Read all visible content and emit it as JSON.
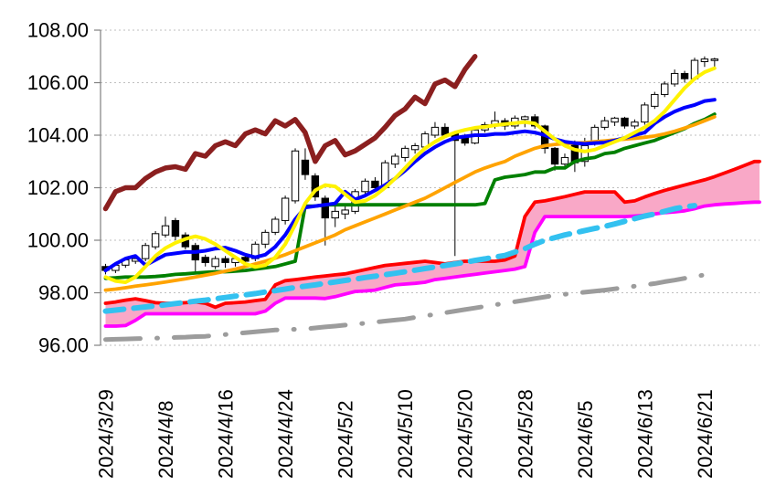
{
  "chart_data": {
    "type": "candlestick",
    "title": "",
    "background": "#FFFFFF",
    "grid": {
      "show": true,
      "color": "#BFBFBF",
      "axis_color": "#808080"
    },
    "y_axis": {
      "min": 96.0,
      "max": 108.0,
      "step": 2.0,
      "tick_labels": [
        "108.00",
        "106.00",
        "104.00",
        "102.00",
        "100.00",
        "98.00",
        "96.00"
      ]
    },
    "x_axis": {
      "total_slots": 66,
      "label_every_n_slots": 6,
      "tick_labels": [
        "2024/3/29",
        "2024/4/8",
        "2024/4/16",
        "2024/4/24",
        "2024/5/2",
        "2024/5/10",
        "2024/5/20",
        "2024/5/28",
        "2024/6/5",
        "2024/6/13",
        "2024/6/21"
      ]
    },
    "dates": [
      "2024/3/29",
      "2024/4/1",
      "2024/4/2",
      "2024/4/3",
      "2024/4/4",
      "2024/4/5",
      "2024/4/8",
      "2024/4/9",
      "2024/4/10",
      "2024/4/11",
      "2024/4/12",
      "2024/4/15",
      "2024/4/16",
      "2024/4/17",
      "2024/4/18",
      "2024/4/19",
      "2024/4/22",
      "2024/4/23",
      "2024/4/24",
      "2024/4/25",
      "2024/4/26",
      "2024/4/29",
      "2024/4/30",
      "2024/5/1",
      "2024/5/2",
      "2024/5/3",
      "2024/5/6",
      "2024/5/7",
      "2024/5/8",
      "2024/5/9",
      "2024/5/10",
      "2024/5/13",
      "2024/5/14",
      "2024/5/15",
      "2024/5/16",
      "2024/5/17",
      "2024/5/20",
      "2024/5/21",
      "2024/5/22",
      "2024/5/23",
      "2024/5/24",
      "2024/5/27",
      "2024/5/28",
      "2024/5/29",
      "2024/5/30",
      "2024/5/31",
      "2024/6/3",
      "2024/6/4",
      "2024/6/5",
      "2024/6/6",
      "2024/6/7",
      "2024/6/10",
      "2024/6/11",
      "2024/6/12",
      "2024/6/13",
      "2024/6/14",
      "2024/6/17",
      "2024/6/18",
      "2024/6/19",
      "2024/6/20",
      "2024/6/21",
      "2024/6/24",
      "2024/6/25",
      "2024/6/26",
      "2024/6/27",
      "2024/6/28"
    ],
    "candles": {
      "up_color": "#FFFFFF",
      "down_color": "#000000",
      "outline_color": "#000000",
      "ohlc": [
        [
          99.0,
          99.1,
          98.7,
          98.85
        ],
        [
          98.85,
          99.15,
          98.75,
          99.05
        ],
        [
          99.05,
          99.35,
          98.95,
          99.25
        ],
        [
          99.2,
          99.35,
          99.1,
          99.3
        ],
        [
          99.3,
          99.9,
          99.2,
          99.8
        ],
        [
          99.75,
          100.35,
          99.65,
          100.25
        ],
        [
          100.2,
          100.9,
          100.1,
          100.55
        ],
        [
          100.75,
          100.85,
          100.0,
          100.15
        ],
        [
          100.2,
          100.3,
          99.65,
          99.75
        ],
        [
          99.8,
          99.9,
          98.8,
          99.25
        ],
        [
          99.35,
          99.45,
          99.0,
          99.15
        ],
        [
          99.0,
          99.4,
          98.9,
          99.3
        ],
        [
          99.3,
          99.4,
          98.95,
          99.15
        ],
        [
          99.15,
          99.4,
          99.0,
          99.3
        ],
        [
          99.35,
          99.45,
          99.05,
          99.2
        ],
        [
          99.3,
          99.95,
          99.2,
          99.85
        ],
        [
          99.85,
          100.4,
          99.7,
          100.3
        ],
        [
          100.3,
          100.9,
          100.2,
          100.8
        ],
        [
          100.75,
          101.7,
          100.6,
          101.6
        ],
        [
          101.5,
          103.5,
          101.4,
          103.4
        ],
        [
          103.05,
          103.5,
          102.3,
          102.5
        ],
        [
          102.45,
          102.55,
          101.5,
          101.65
        ],
        [
          101.6,
          101.7,
          99.8,
          100.85
        ],
        [
          100.85,
          101.3,
          100.5,
          101.1
        ],
        [
          101.0,
          101.4,
          100.8,
          101.15
        ],
        [
          101.1,
          101.95,
          101.0,
          101.85
        ],
        [
          101.85,
          102.35,
          101.7,
          102.25
        ],
        [
          102.25,
          102.4,
          101.85,
          102.0
        ],
        [
          102.0,
          103.05,
          101.95,
          102.95
        ],
        [
          102.9,
          103.3,
          102.75,
          103.2
        ],
        [
          103.15,
          103.6,
          103.0,
          103.5
        ],
        [
          103.45,
          103.7,
          103.3,
          103.6
        ],
        [
          103.55,
          104.15,
          103.5,
          104.05
        ],
        [
          104.0,
          104.5,
          103.9,
          104.3
        ],
        [
          104.3,
          104.45,
          103.9,
          104.0
        ],
        [
          104.05,
          104.15,
          99.4,
          103.8
        ],
        [
          103.95,
          104.05,
          103.6,
          103.7
        ],
        [
          103.7,
          104.3,
          103.65,
          104.2
        ],
        [
          104.2,
          104.5,
          104.1,
          104.4
        ],
        [
          104.35,
          104.9,
          104.25,
          104.55
        ],
        [
          104.55,
          104.65,
          104.2,
          104.35
        ],
        [
          104.35,
          104.75,
          104.25,
          104.65
        ],
        [
          104.6,
          104.75,
          104.3,
          104.7
        ],
        [
          104.7,
          104.8,
          104.25,
          104.35
        ],
        [
          104.35,
          104.4,
          103.3,
          103.5
        ],
        [
          103.5,
          103.55,
          102.65,
          102.9
        ],
        [
          102.9,
          103.3,
          102.75,
          103.15
        ],
        [
          103.7,
          103.8,
          102.6,
          102.95
        ],
        [
          103.0,
          103.9,
          102.8,
          103.6
        ],
        [
          103.75,
          104.4,
          103.6,
          104.3
        ],
        [
          104.3,
          104.7,
          104.2,
          104.55
        ],
        [
          104.5,
          104.7,
          104.35,
          104.65
        ],
        [
          104.65,
          104.7,
          104.25,
          104.35
        ],
        [
          104.35,
          104.6,
          104.25,
          104.5
        ],
        [
          104.5,
          105.25,
          104.4,
          105.15
        ],
        [
          105.1,
          105.65,
          105.0,
          105.55
        ],
        [
          105.55,
          106.05,
          105.45,
          105.95
        ],
        [
          105.95,
          106.5,
          105.85,
          106.35
        ],
        [
          106.35,
          106.45,
          106.0,
          106.15
        ],
        [
          106.15,
          106.95,
          106.1,
          106.85
        ],
        [
          106.8,
          107.0,
          106.6,
          106.9
        ],
        [
          106.85,
          106.95,
          106.55,
          106.9
        ]
      ]
    },
    "lines": [
      {
        "name": "thick-dark-red-lagging-line",
        "color": "#8B1F1F",
        "width": 5.5,
        "dash": "solid",
        "start_slot": 0,
        "values": [
          101.2,
          101.85,
          102.0,
          102.0,
          102.35,
          102.6,
          102.75,
          102.8,
          102.7,
          103.3,
          103.2,
          103.6,
          103.75,
          103.6,
          104.05,
          104.2,
          104.05,
          104.55,
          104.35,
          104.6,
          104.1,
          103.0,
          103.6,
          103.8,
          103.25,
          103.4,
          103.65,
          103.9,
          104.3,
          104.75,
          105.0,
          105.45,
          105.2,
          105.95,
          106.1,
          105.85,
          106.5,
          107.0
        ]
      },
      {
        "name": "green-step-line",
        "color": "#008000",
        "width": 3.8,
        "dash": "solid",
        "start_slot": 0,
        "values": [
          98.55,
          98.57,
          98.6,
          98.6,
          98.6,
          98.62,
          98.65,
          98.7,
          98.72,
          98.75,
          98.78,
          98.8,
          98.8,
          98.82,
          98.85,
          98.9,
          98.95,
          99.0,
          99.1,
          99.2,
          101.3,
          101.3,
          101.35,
          101.35,
          101.35,
          101.35,
          101.35,
          101.35,
          101.35,
          101.35,
          101.35,
          101.35,
          101.35,
          101.35,
          101.35,
          101.35,
          101.35,
          101.35,
          101.4,
          102.3,
          102.4,
          102.45,
          102.5,
          102.6,
          102.6,
          102.75,
          102.75,
          103.0,
          103.1,
          103.15,
          103.3,
          103.35,
          103.5,
          103.6,
          103.7,
          103.8,
          103.95,
          104.1,
          104.25,
          104.45,
          104.6,
          104.8
        ]
      },
      {
        "name": "orange-slow-ma-line",
        "color": "#FFA300",
        "width": 3.8,
        "dash": "solid",
        "start_slot": 0,
        "values": [
          98.1,
          98.14,
          98.19,
          98.25,
          98.3,
          98.35,
          98.41,
          98.47,
          98.53,
          98.6,
          98.67,
          98.74,
          98.82,
          98.9,
          99.0,
          99.1,
          99.2,
          99.32,
          99.45,
          99.6,
          99.75,
          99.9,
          100.05,
          100.2,
          100.4,
          100.55,
          100.7,
          100.85,
          101.0,
          101.15,
          101.3,
          101.45,
          101.6,
          101.8,
          102.0,
          102.2,
          102.4,
          102.6,
          102.75,
          102.88,
          103.0,
          103.2,
          103.35,
          103.5,
          103.6,
          103.65,
          103.68,
          103.7,
          103.72,
          103.75,
          103.78,
          103.82,
          103.85,
          103.88,
          103.92,
          103.97,
          104.05,
          104.15,
          104.27,
          104.4,
          104.55,
          104.7
        ]
      },
      {
        "name": "blue-fast-ma-line",
        "color": "#0000FF",
        "width": 4,
        "dash": "solid",
        "start_slot": 0,
        "values": [
          98.85,
          99.1,
          99.3,
          99.4,
          99.05,
          99.25,
          99.45,
          99.5,
          99.55,
          99.55,
          99.6,
          99.68,
          99.72,
          99.6,
          99.45,
          99.35,
          99.45,
          99.75,
          100.2,
          100.8,
          101.25,
          101.3,
          101.35,
          101.4,
          101.85,
          101.55,
          101.7,
          101.9,
          102.1,
          102.35,
          102.65,
          103.0,
          103.3,
          103.55,
          103.75,
          103.9,
          103.95,
          104.0,
          104.0,
          104.05,
          104.05,
          104.1,
          104.15,
          104.1,
          104.0,
          103.85,
          103.75,
          103.7,
          103.67,
          103.7,
          103.72,
          103.8,
          103.9,
          104.0,
          104.1,
          104.45,
          104.7,
          104.9,
          105.05,
          105.15,
          105.3,
          105.35
        ]
      },
      {
        "name": "yellow-line",
        "color": "#FFF200",
        "width": 4,
        "dash": "solid",
        "start_slot": 0,
        "values": [
          98.6,
          98.45,
          98.4,
          98.6,
          99.0,
          99.4,
          99.7,
          99.9,
          100.05,
          100.15,
          100.05,
          99.85,
          99.6,
          99.35,
          99.1,
          98.98,
          99.05,
          99.35,
          99.85,
          100.6,
          101.4,
          101.9,
          102.1,
          102.05,
          101.75,
          101.45,
          101.5,
          101.7,
          102.0,
          102.35,
          102.75,
          103.15,
          103.5,
          103.75,
          103.95,
          104.1,
          104.2,
          104.28,
          104.32,
          104.38,
          104.42,
          104.46,
          104.5,
          104.45,
          104.15,
          103.85,
          103.6,
          103.45,
          103.38,
          103.45,
          103.6,
          103.75,
          103.9,
          104.1,
          104.3,
          104.55,
          104.9,
          105.35,
          105.8,
          106.15,
          106.4,
          106.55
        ]
      },
      {
        "name": "cyan-dashed-line",
        "color": "#33C1F0",
        "width": 6,
        "dash": "20 11",
        "start_slot": 0,
        "values": [
          97.3,
          97.34,
          97.38,
          97.42,
          97.46,
          97.5,
          97.54,
          97.59,
          97.63,
          97.68,
          97.72,
          97.77,
          97.82,
          97.87,
          97.92,
          97.97,
          98.03,
          98.08,
          98.14,
          98.2,
          98.25,
          98.3,
          98.36,
          98.41,
          98.47,
          98.52,
          98.58,
          98.63,
          98.69,
          98.74,
          98.8,
          98.86,
          98.92,
          98.98,
          99.04,
          99.1,
          99.16,
          99.23,
          99.29,
          99.36,
          99.42,
          99.55,
          99.68,
          99.85,
          100.0,
          100.1,
          100.2,
          100.28,
          100.37,
          100.45,
          100.53,
          100.62,
          100.72,
          100.82,
          100.92,
          101.0,
          101.1,
          101.2,
          101.27,
          101.32
        ]
      },
      {
        "name": "gray-dashdot-line",
        "color": "#9C9C9C",
        "width": 5,
        "dash": "38 18 1 18",
        "start_slot": 0,
        "values": [
          96.22,
          96.23,
          96.24,
          96.25,
          96.26,
          96.27,
          96.28,
          96.3,
          96.31,
          96.33,
          96.34,
          96.38,
          96.41,
          96.45,
          96.48,
          96.51,
          96.55,
          96.58,
          96.6,
          96.61,
          96.62,
          96.66,
          96.7,
          96.73,
          96.77,
          96.8,
          96.84,
          96.88,
          96.92,
          96.96,
          97.0,
          97.06,
          97.12,
          97.18,
          97.24,
          97.3,
          97.36,
          97.42,
          97.48,
          97.54,
          97.6,
          97.66,
          97.72,
          97.78,
          97.84,
          97.9,
          97.94,
          97.98,
          98.02,
          98.06,
          98.1,
          98.15,
          98.2,
          98.25,
          98.3,
          98.35,
          98.42,
          98.48,
          98.55,
          98.62,
          98.68,
          98.75
        ]
      }
    ],
    "cloud": {
      "name": "pink-cloud-band",
      "fill_color": "#F9A8C7",
      "top_line_color": "#FF0000",
      "bottom_line_color": "#FF00FF",
      "line_width": 3.8,
      "top_values": [
        97.6,
        97.65,
        97.72,
        97.77,
        97.7,
        97.62,
        97.6,
        97.6,
        97.62,
        97.65,
        97.6,
        97.45,
        97.6,
        97.62,
        97.65,
        97.7,
        97.75,
        98.3,
        98.46,
        98.5,
        98.55,
        98.6,
        98.64,
        98.68,
        98.72,
        98.8,
        98.88,
        98.96,
        99.04,
        99.08,
        99.12,
        99.16,
        99.2,
        99.15,
        99.1,
        99.15,
        99.2,
        99.2,
        99.2,
        99.2,
        99.25,
        99.4,
        100.9,
        101.45,
        101.5,
        101.58,
        101.66,
        101.75,
        101.84,
        101.84,
        101.84,
        101.84,
        101.45,
        101.5,
        101.65,
        101.78,
        101.9,
        102.0,
        102.1,
        102.2,
        102.3,
        102.42,
        102.56,
        102.7,
        102.85,
        103.0
      ],
      "bottom_values": [
        96.73,
        96.73,
        96.75,
        96.95,
        97.2,
        97.2,
        97.2,
        97.2,
        97.2,
        97.2,
        97.2,
        97.2,
        97.2,
        97.2,
        97.2,
        97.2,
        97.3,
        97.6,
        97.8,
        97.8,
        97.8,
        97.8,
        97.78,
        97.85,
        97.95,
        98.05,
        98.07,
        98.1,
        98.2,
        98.3,
        98.33,
        98.36,
        98.4,
        98.5,
        98.55,
        98.6,
        98.65,
        98.7,
        98.75,
        98.8,
        98.85,
        98.9,
        99.0,
        100.3,
        100.9,
        100.9,
        100.9,
        100.9,
        100.9,
        100.9,
        100.9,
        100.9,
        100.9,
        100.92,
        100.95,
        101.0,
        101.05,
        101.08,
        101.12,
        101.2,
        101.3,
        101.35,
        101.38,
        101.4,
        101.43,
        101.45
      ]
    }
  }
}
